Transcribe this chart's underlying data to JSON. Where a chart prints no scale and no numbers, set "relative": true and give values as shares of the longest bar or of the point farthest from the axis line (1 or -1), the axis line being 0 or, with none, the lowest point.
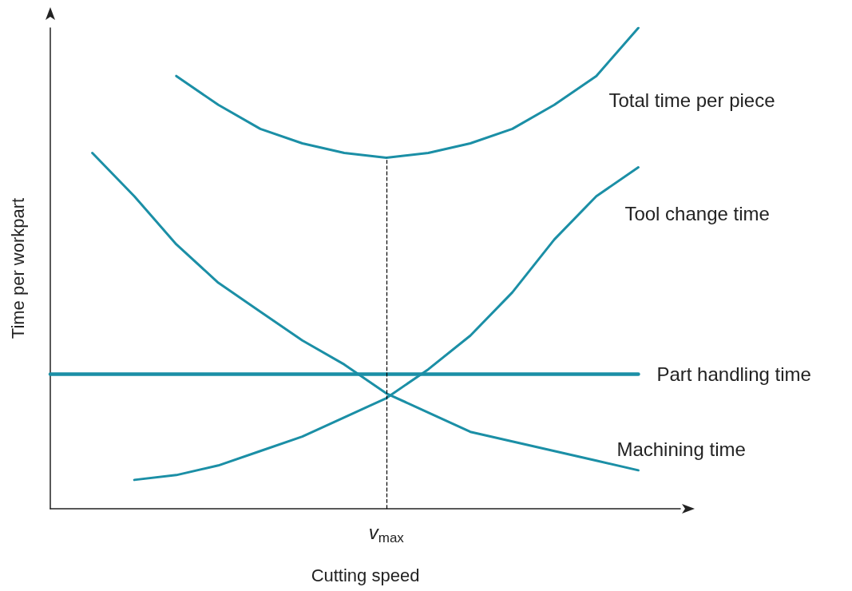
{
  "chart_data": {
    "type": "line",
    "relative": true,
    "xlabel": "Cutting speed",
    "ylabel": "Time per workpart",
    "categories": [
      null,
      null,
      null,
      null,
      null,
      null,
      null,
      null,
      null,
      null,
      null,
      null,
      null,
      null,
      null,
      null
    ],
    "series": [
      {
        "name": "Total time per piece",
        "color": "#1b8fa6",
        "values": [
          null,
          null,
          null,
          0.9,
          0.84,
          0.79,
          0.76,
          0.74,
          0.73,
          0.74,
          0.76,
          0.79,
          0.84,
          0.9,
          1.0,
          null
        ]
      },
      {
        "name": "Tool change time",
        "color": "#1b8fa6",
        "values": [
          null,
          null,
          0.06,
          0.07,
          0.09,
          0.12,
          0.15,
          0.19,
          0.23,
          0.29,
          0.36,
          0.45,
          0.56,
          0.65,
          0.71,
          null
        ]
      },
      {
        "name": "Part handling time",
        "color": "#1b8fa6",
        "values": [
          0.28,
          0.28,
          0.28,
          0.28,
          0.28,
          0.28,
          0.28,
          0.28,
          0.28,
          0.28,
          0.28,
          0.28,
          0.28,
          0.28,
          0.28,
          null
        ]
      },
      {
        "name": "Machining time",
        "color": "#1b8fa6",
        "values": [
          null,
          0.74,
          0.65,
          0.55,
          0.47,
          0.41,
          0.35,
          0.3,
          0.24,
          0.2,
          0.16,
          0.14,
          0.12,
          0.1,
          0.08,
          null
        ]
      }
    ],
    "ref_lines": [
      {
        "axis": "x",
        "label": "v$_{max}$",
        "line_style": "dashed",
        "color": "#000000"
      }
    ],
    "grid": false,
    "legend": false,
    "marker": "none",
    "line_style": "solid"
  }
}
